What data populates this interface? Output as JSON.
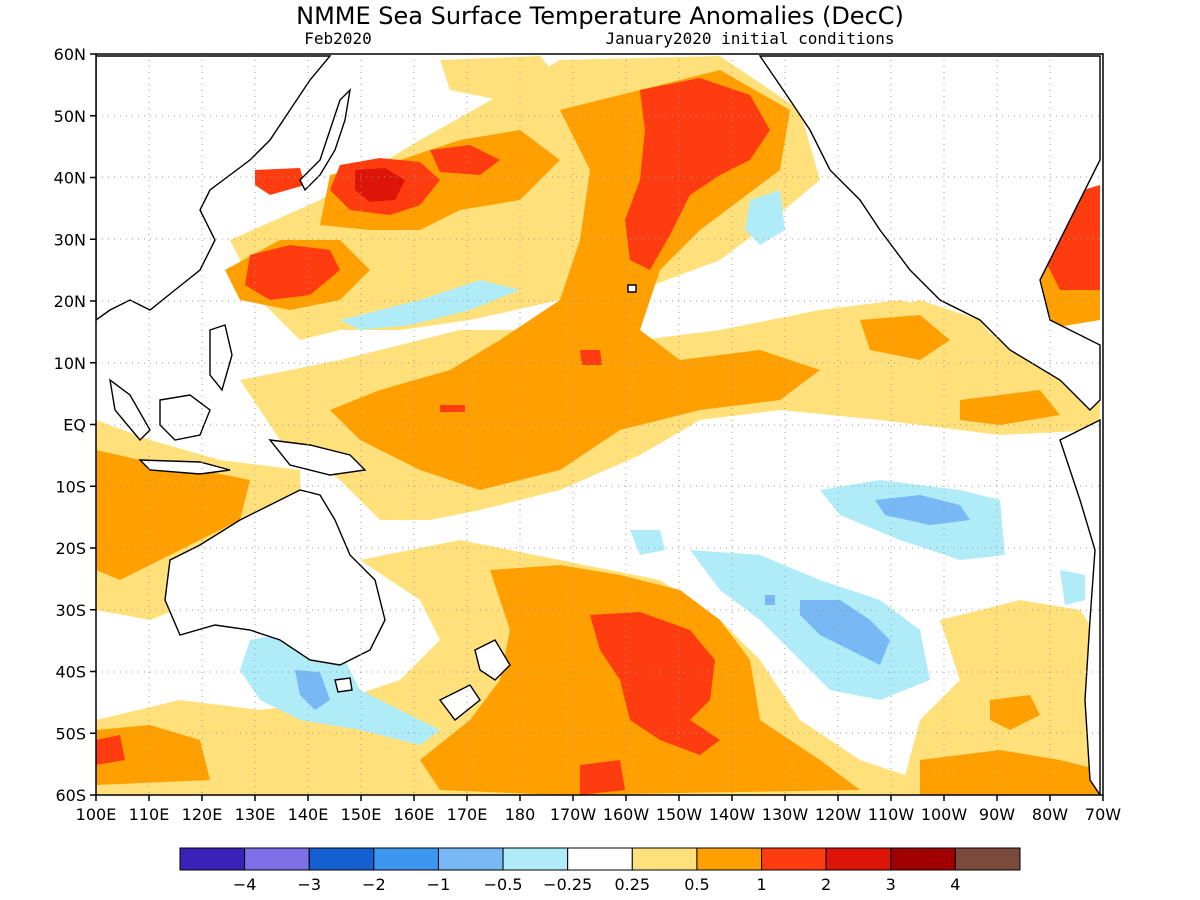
{
  "title": "NMME Sea Surface Temperature Anomalies (DecC)",
  "forecast_month": "Feb2020",
  "initial_conditions": "January2020 initial conditions",
  "lat_labels": [
    "60N",
    "50N",
    "40N",
    "30N",
    "20N",
    "10N",
    "EQ",
    "10S",
    "20S",
    "30S",
    "40S",
    "50S",
    "60S"
  ],
  "lon_labels": [
    "100E",
    "110E",
    "120E",
    "130E",
    "140E",
    "150E",
    "160E",
    "170E",
    "180",
    "170W",
    "160W",
    "150W",
    "140W",
    "130W",
    "120W",
    "110W",
    "100W",
    "90W",
    "80W",
    "70W"
  ],
  "colorbar": {
    "colors": [
      "#3a22b8",
      "#8070e8",
      "#1560d0",
      "#3d96f0",
      "#78b8f5",
      "#b0ecf8",
      "#ffffff",
      "#ffe07a",
      "#ffa000",
      "#ff3c0f",
      "#dd1508",
      "#a00000",
      "#7a4a3c"
    ],
    "labels": [
      "−4",
      "−3",
      "−2",
      "−1",
      "−0.5",
      "−0.25",
      "0.25",
      "0.5",
      "1",
      "2",
      "3",
      "4"
    ]
  },
  "colors": {
    "warm_0_5": "#ffe07a",
    "warm_1": "#ffa000",
    "warm_2": "#ff3c0f",
    "warm_3": "#dd1508",
    "warm_4": "#a00000",
    "cool_0_25": "#b0ecf8",
    "cool_0_5": "#78b8f5",
    "cool_1": "#3d96f0"
  }
}
